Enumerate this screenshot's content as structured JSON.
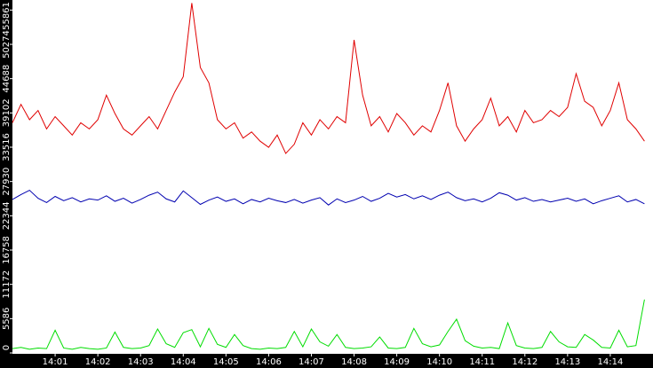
{
  "chart_data": {
    "type": "line",
    "x": [
      840,
      840.2,
      840.4,
      840.6,
      840.8,
      841,
      841.2,
      841.4,
      841.6,
      841.8,
      842,
      842.2,
      842.4,
      842.6,
      842.8,
      843,
      843.2,
      843.4,
      843.6,
      843.8,
      844,
      844.2,
      844.4,
      844.6,
      844.8,
      845,
      845.2,
      845.4,
      845.6,
      845.8,
      846,
      846.2,
      846.4,
      846.6,
      846.8,
      847,
      847.2,
      847.4,
      847.6,
      847.8,
      848,
      848.2,
      848.4,
      848.6,
      848.8,
      849,
      849.2,
      849.4,
      849.6,
      849.8,
      850,
      850.2,
      850.4,
      850.6,
      850.8,
      851,
      851.2,
      851.4,
      851.6,
      851.8,
      852,
      852.2,
      852.4,
      852.6,
      852.8,
      853,
      853.2,
      853.4,
      853.6,
      853.8,
      854,
      854.2,
      854.4,
      854.6,
      854.8
    ],
    "series": [
      {
        "color": "#e00000",
        "values": [
          37500,
          40500,
          38000,
          39500,
          36500,
          38500,
          37000,
          35500,
          37500,
          36500,
          38000,
          42000,
          39000,
          36500,
          35500,
          37000,
          38500,
          36500,
          39500,
          42500,
          45000,
          57000,
          46500,
          44000,
          38000,
          36500,
          37500,
          35000,
          36000,
          34500,
          33500,
          35500,
          32500,
          34000,
          37500,
          35500,
          38000,
          36500,
          38500,
          37500,
          51000,
          42000,
          37000,
          38500,
          36000,
          39000,
          37500,
          35500,
          37000,
          36000,
          39500,
          44000,
          37000,
          34500,
          36500,
          38000,
          41500,
          37000,
          38500,
          36000,
          39500,
          37500,
          38000,
          39500,
          38500,
          40000,
          45500,
          41000,
          40000,
          37000,
          39500,
          44000,
          38000,
          36500,
          34500
        ]
      },
      {
        "color": "#0000b0",
        "values": [
          25000,
          25800,
          26500,
          25200,
          24500,
          25500,
          24800,
          25300,
          24600,
          25100,
          24900,
          25600,
          24700,
          25200,
          24400,
          25000,
          25700,
          26200,
          25100,
          24600,
          26400,
          25300,
          24200,
          24900,
          25400,
          24700,
          25100,
          24300,
          25000,
          24600,
          25200,
          24800,
          24500,
          25000,
          24400,
          24900,
          25300,
          24100,
          25100,
          24500,
          24900,
          25500,
          24700,
          25200,
          26000,
          25400,
          25800,
          25100,
          25600,
          25000,
          25700,
          26200,
          25300,
          24800,
          25100,
          24600,
          25200,
          26100,
          25700,
          24900,
          25300,
          24700,
          25000,
          24600,
          24900,
          25200,
          24700,
          25100,
          24300,
          24800,
          25200,
          25600,
          24600,
          25000,
          24300
        ]
      },
      {
        "color": "#00dd00",
        "values": [
          700,
          900,
          600,
          800,
          700,
          3700,
          800,
          600,
          900,
          700,
          600,
          800,
          3400,
          900,
          700,
          800,
          1200,
          3900,
          1500,
          900,
          3300,
          3800,
          1000,
          4000,
          1400,
          900,
          3000,
          1200,
          700,
          600,
          800,
          700,
          900,
          3500,
          1000,
          3900,
          1800,
          1100,
          3000,
          900,
          700,
          800,
          1000,
          2600,
          800,
          700,
          900,
          4000,
          1500,
          1000,
          1300,
          3500,
          5500,
          2000,
          1100,
          800,
          900,
          700,
          4900,
          1200,
          800,
          700,
          900,
          3500,
          1800,
          1000,
          900,
          3000,
          2100,
          900,
          800,
          3700,
          1000,
          1200,
          8700
        ]
      }
    ],
    "xlim": [
      840,
      855
    ],
    "xticks": [
      {
        "value": 841,
        "label": "14:01"
      },
      {
        "value": 842,
        "label": "14:02"
      },
      {
        "value": 843,
        "label": "14:03"
      },
      {
        "value": 844,
        "label": "14:04"
      },
      {
        "value": 845,
        "label": "14:05"
      },
      {
        "value": 846,
        "label": "14:06"
      },
      {
        "value": 847,
        "label": "14:07"
      },
      {
        "value": 848,
        "label": "14:08"
      },
      {
        "value": 849,
        "label": "14:09"
      },
      {
        "value": 850,
        "label": "14:10"
      },
      {
        "value": 851,
        "label": "14:11"
      },
      {
        "value": 852,
        "label": "14:12"
      },
      {
        "value": 853,
        "label": "14:13"
      },
      {
        "value": 854,
        "label": "14:14"
      }
    ],
    "ylim": [
      0,
      57500
    ],
    "yticks": [
      0,
      5586,
      11172,
      16758,
      22344,
      27930,
      33516,
      39102,
      44688,
      50274,
      55861
    ]
  }
}
